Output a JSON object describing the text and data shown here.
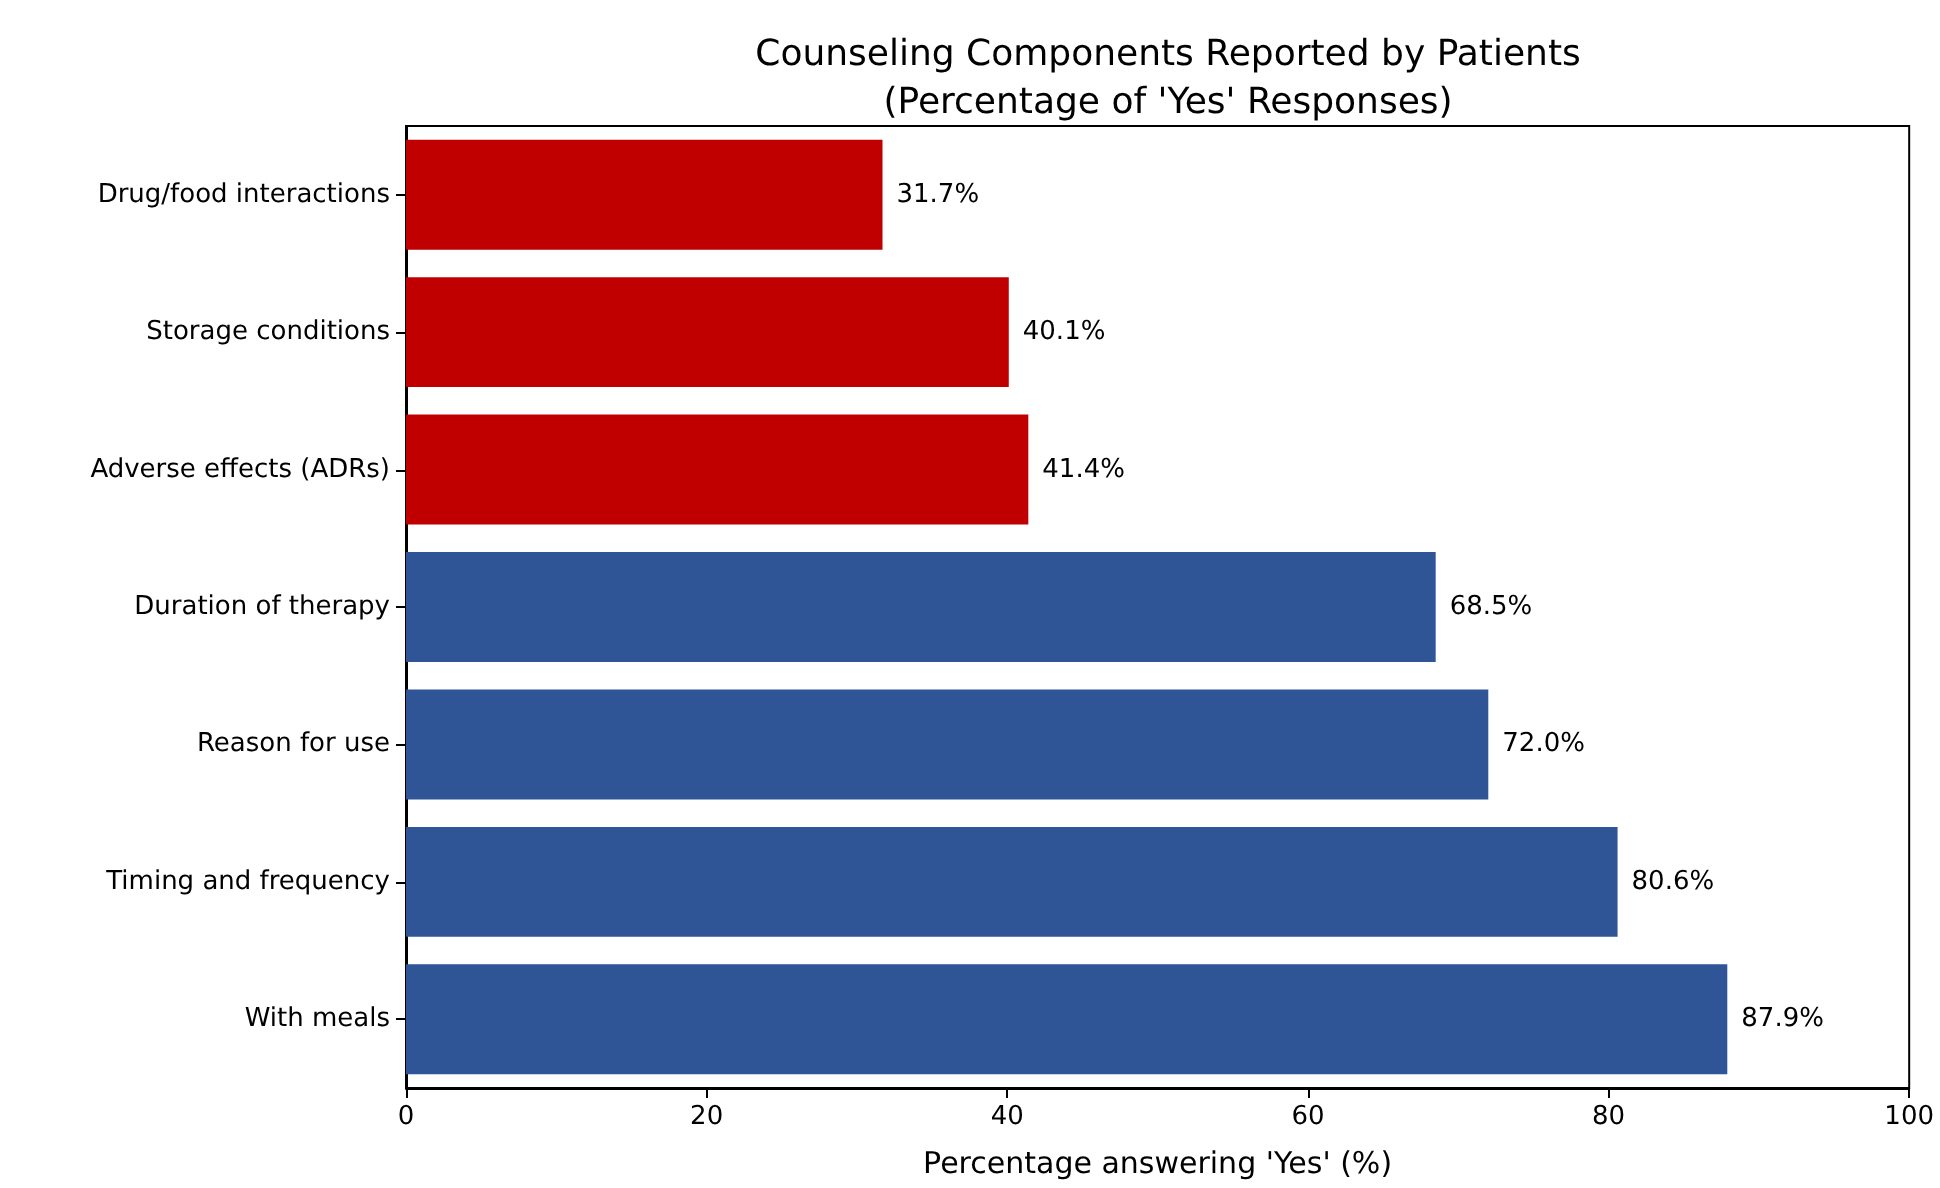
{
  "chart_data": {
    "type": "bar",
    "orientation": "horizontal",
    "title": "Counseling Components Reported by Patients\n(Percentage of 'Yes' Responses)",
    "xlabel": "Percentage answering 'Yes' (%)",
    "categories": [
      "Drug/food interactions",
      "Storage conditions",
      "Adverse effects (ADRs)",
      "Duration of therapy",
      "Reason for use",
      "Timing and frequency",
      "With meals"
    ],
    "values": [
      31.7,
      40.1,
      41.4,
      68.5,
      72.0,
      80.6,
      87.9
    ],
    "value_labels": [
      "31.7%",
      "40.1%",
      "41.4%",
      "68.5%",
      "72.0%",
      "80.6%",
      "87.9%"
    ],
    "colors": [
      "#c00000",
      "#c00000",
      "#c00000",
      "#2f5597",
      "#2f5597",
      "#2f5597",
      "#2f5597"
    ],
    "xlim": [
      0,
      100
    ],
    "xticks": [
      0,
      20,
      40,
      60,
      80,
      100
    ],
    "grid": false
  }
}
